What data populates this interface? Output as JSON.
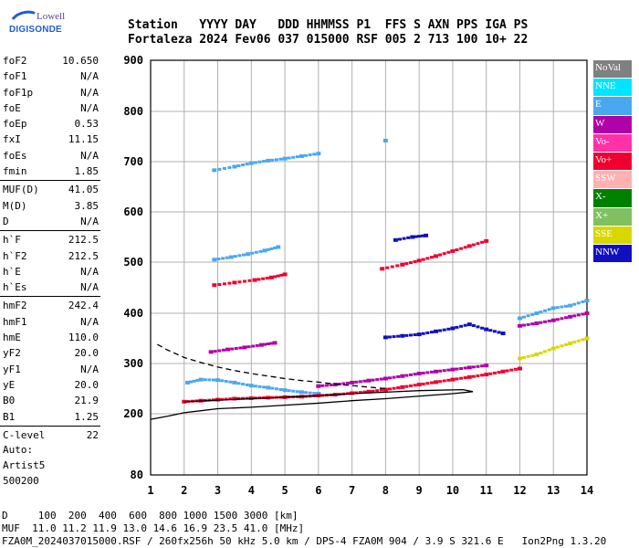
{
  "logo": {
    "line1": "Lowell",
    "line2": "DIGISONDE"
  },
  "header": {
    "line1": "Station   YYYY DAY   DDD HHMMSS P1  FFS S AXN PPS IGA PS",
    "line2": "Fortaleza 2024 Fev06 037 015000 RSF 005 2 713 100 10+ 22"
  },
  "params_group1": [
    {
      "label": "foF2",
      "value": "10.650"
    },
    {
      "label": "foF1",
      "value": "N/A"
    },
    {
      "label": "foF1p",
      "value": "N/A"
    },
    {
      "label": "foE",
      "value": "N/A"
    },
    {
      "label": "foEp",
      "value": "0.53"
    },
    {
      "label": "fxI",
      "value": "11.15"
    },
    {
      "label": "foEs",
      "value": "N/A"
    },
    {
      "label": "fmin",
      "value": "1.85"
    }
  ],
  "params_group2": [
    {
      "label": "MUF(D)",
      "value": "41.05"
    },
    {
      "label": "M(D)",
      "value": "3.85"
    },
    {
      "label": "D",
      "value": "N/A"
    }
  ],
  "params_group3": [
    {
      "label": "h`F",
      "value": "212.5"
    },
    {
      "label": "h`F2",
      "value": "212.5"
    },
    {
      "label": "h`E",
      "value": "N/A"
    },
    {
      "label": "h`Es",
      "value": "N/A"
    }
  ],
  "params_group4": [
    {
      "label": "hmF2",
      "value": "242.4"
    },
    {
      "label": "hmF1",
      "value": "N/A"
    },
    {
      "label": "hmE",
      "value": "110.0"
    },
    {
      "label": "yF2",
      "value": "20.0"
    },
    {
      "label": "yF1",
      "value": "N/A"
    },
    {
      "label": "yE",
      "value": "20.0"
    },
    {
      "label": "B0",
      "value": "21.9"
    },
    {
      "label": "B1",
      "value": "1.25"
    }
  ],
  "params_group5": [
    {
      "label": "C-level",
      "value": "22"
    }
  ],
  "autoscaling": {
    "line1": "Auto:",
    "line2": "Artist5",
    "line3": "500200"
  },
  "legend": [
    {
      "label": "NoVal",
      "color": "#808080",
      "text_color": "#ffffff"
    },
    {
      "label": "NNE",
      "color": "#00e5ff",
      "text_color": "#ffffff"
    },
    {
      "label": "E",
      "color": "#4aa8f0",
      "text_color": "#ffffff"
    },
    {
      "label": "W",
      "color": "#b000a8",
      "text_color": "#ffffff"
    },
    {
      "label": "Vo-",
      "color": "#ff30a8",
      "text_color": "#ffffff"
    },
    {
      "label": "Vo+",
      "color": "#f00030",
      "text_color": "#ffffff"
    },
    {
      "label": "SSW",
      "color": "#ffb0b0",
      "text_color": "#ffffff"
    },
    {
      "label": "X-",
      "color": "#008000",
      "text_color": "#ffffff"
    },
    {
      "label": "X+",
      "color": "#80c060",
      "text_color": "#ffffff"
    },
    {
      "label": "SSE",
      "color": "#d8d800",
      "text_color": "#ffffff"
    },
    {
      "label": "NNW",
      "color": "#1010c0",
      "text_color": "#ffffff"
    }
  ],
  "bottom": {
    "d_line": "D     100  200  400  600  800 1000 1500 3000 [km]",
    "muf_line": "MUF  11.0 11.2 11.9 13.0 14.6 16.9 23.5 41.0 [MHz]",
    "file_line": "FZA0M_2024037015000.RSF / 260fx256h 50 kHz 5.0 km / DPS-4 FZA0M 904 / 3.9 S 321.6 E   Ion2Png 1.3.20"
  },
  "chart_data": {
    "type": "scatter",
    "xlim": [
      1,
      14
    ],
    "ylim": [
      80,
      900
    ],
    "xticks": [
      "1",
      "2",
      "3",
      "4",
      "5",
      "6",
      "7",
      "8",
      "9",
      "10",
      "11",
      "12",
      "13",
      "14"
    ],
    "yticks": [
      "80",
      "200",
      "300",
      "400",
      "500",
      "600",
      "700",
      "800",
      "900"
    ],
    "grid": true,
    "traces": [
      {
        "name": "E",
        "x": [
          2.9,
          3.5,
          4.0,
          4.5,
          5.0,
          5.5,
          6.0
        ],
        "y": [
          683,
          690,
          697,
          702,
          706,
          711,
          716
        ]
      },
      {
        "name": "E",
        "x": [
          8.0
        ],
        "y": [
          742
        ]
      },
      {
        "name": "E",
        "x": [
          2.9,
          3.4,
          3.9,
          4.4,
          4.8
        ],
        "y": [
          505,
          510,
          516,
          523,
          530
        ]
      },
      {
        "name": "Vo+",
        "x": [
          2.9,
          3.5,
          4.1,
          4.6,
          5.0
        ],
        "y": [
          455,
          460,
          465,
          470,
          476
        ]
      },
      {
        "name": "Vo+",
        "x": [
          7.9,
          8.5,
          9.0,
          9.5,
          10.0,
          10.5,
          11.0
        ],
        "y": [
          487,
          495,
          503,
          512,
          522,
          532,
          542
        ]
      },
      {
        "name": "W",
        "x": [
          2.8,
          3.3,
          3.8,
          4.3,
          4.7
        ],
        "y": [
          323,
          328,
          332,
          337,
          341
        ]
      },
      {
        "name": "NNW",
        "x": [
          8.0,
          8.5,
          9.0,
          9.5,
          10.0,
          10.5,
          11.0,
          11.5
        ],
        "y": [
          352,
          355,
          358,
          364,
          370,
          378,
          368,
          360
        ]
      },
      {
        "name": "NNW",
        "x": [
          8.3,
          8.8,
          9.2
        ],
        "y": [
          544,
          550,
          553
        ]
      },
      {
        "name": "E",
        "x": [
          2.1,
          2.5,
          3.0,
          3.5,
          4.0,
          4.5,
          5.0,
          5.5,
          6.0
        ],
        "y": [
          262,
          268,
          267,
          262,
          256,
          252,
          247,
          243,
          240
        ]
      },
      {
        "name": "Vo+",
        "x": [
          2.0,
          2.5,
          3.0,
          3.5,
          4.0,
          4.5,
          5.0,
          5.5,
          6.0,
          6.5,
          7.0,
          7.5,
          8.0,
          8.5,
          9.0,
          9.5,
          10.0,
          10.5,
          11.0,
          11.5,
          12.0
        ],
        "y": [
          224,
          226,
          228,
          230,
          231,
          232,
          233,
          234,
          236,
          238,
          241,
          244,
          248,
          253,
          258,
          263,
          268,
          273,
          278,
          284,
          290
        ]
      },
      {
        "name": "W",
        "x": [
          6.0,
          6.5,
          7.0,
          7.5,
          8.0,
          8.5,
          9.0,
          9.5,
          10.0,
          10.5,
          11.0
        ],
        "y": [
          255,
          258,
          262,
          266,
          270,
          275,
          280,
          284,
          288,
          292,
          296
        ]
      },
      {
        "name": "W",
        "x": [
          12.0,
          12.5,
          13.0,
          13.5,
          14.0
        ],
        "y": [
          375,
          380,
          386,
          393,
          400
        ]
      },
      {
        "name": "SSE",
        "x": [
          12.0,
          12.5,
          13.0,
          13.5,
          14.0
        ],
        "y": [
          310,
          318,
          330,
          340,
          350
        ]
      },
      {
        "name": "E",
        "x": [
          12.0,
          12.5,
          13.0,
          13.5,
          14.0
        ],
        "y": [
          390,
          400,
          410,
          415,
          425
        ]
      }
    ],
    "profile_dashed": {
      "x": [
        1.2,
        1.5,
        2.0,
        2.5,
        3.0,
        3.5,
        4.0,
        4.5,
        5.0,
        5.5,
        6.0,
        6.5,
        7.0,
        7.5,
        8.0
      ],
      "y": [
        338,
        327,
        312,
        302,
        293,
        286,
        280,
        275,
        270,
        266,
        263,
        259,
        256,
        253,
        250
      ]
    },
    "profile_solid": {
      "x": [
        1.0,
        1.5,
        2.0,
        2.5,
        3.0,
        4.0,
        5.0,
        6.0,
        7.0,
        8.0,
        9.0,
        10.0,
        10.6,
        10.3,
        9.0,
        8.0,
        7.0,
        6.0,
        5.0,
        4.0,
        3.0,
        2.4,
        2.0
      ],
      "y": [
        189,
        195,
        202,
        206,
        210,
        213,
        217,
        221,
        226,
        230,
        235,
        240,
        244,
        248,
        246,
        243,
        240,
        236,
        233,
        230,
        227,
        225,
        224
      ]
    }
  }
}
